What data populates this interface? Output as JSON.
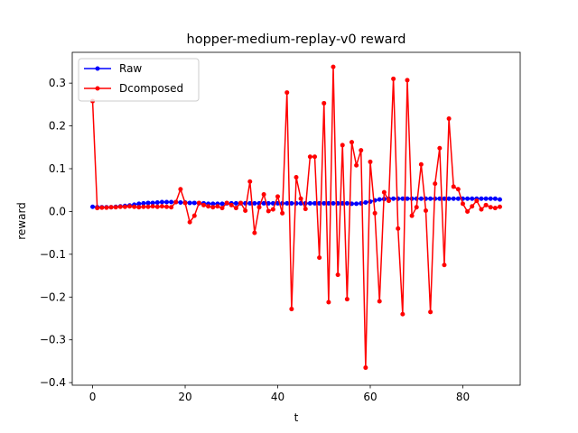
{
  "chart_data": {
    "type": "line",
    "title": "hopper-medium-replay-v0 reward",
    "xlabel": "t",
    "ylabel": "reward",
    "xlim": [
      -4.4,
      92.4
    ],
    "ylim": [
      -0.406,
      0.372
    ],
    "xticks": [
      0,
      20,
      40,
      60,
      80
    ],
    "yticks": [
      -0.4,
      -0.3,
      -0.2,
      -0.1,
      0.0,
      0.1,
      0.2,
      0.3
    ],
    "ytick_labels": [
      "−0.4",
      "−0.3",
      "−0.2",
      "−0.1",
      "0.0",
      "0.1",
      "0.2",
      "0.3"
    ],
    "xtick_labels": [
      "0",
      "20",
      "40",
      "60",
      "80"
    ],
    "grid": false,
    "legend_position": "upper-left",
    "x": [
      0,
      1,
      2,
      3,
      4,
      5,
      6,
      7,
      8,
      9,
      10,
      11,
      12,
      13,
      14,
      15,
      16,
      17,
      18,
      19,
      20,
      21,
      22,
      23,
      24,
      25,
      26,
      27,
      28,
      29,
      30,
      31,
      32,
      33,
      34,
      35,
      36,
      37,
      38,
      39,
      40,
      41,
      42,
      43,
      44,
      45,
      46,
      47,
      48,
      49,
      50,
      51,
      52,
      53,
      54,
      55,
      56,
      57,
      58,
      59,
      60,
      61,
      62,
      63,
      64,
      65,
      66,
      67,
      68,
      69,
      70,
      71,
      72,
      73,
      74,
      75,
      76,
      77,
      78,
      79,
      80,
      81,
      82,
      83,
      84,
      85,
      86,
      87,
      88
    ],
    "series": [
      {
        "name": "Raw",
        "color": "#0000ff",
        "values": [
          0.011,
          0.01,
          0.01,
          0.01,
          0.01,
          0.011,
          0.012,
          0.013,
          0.014,
          0.016,
          0.018,
          0.019,
          0.02,
          0.02,
          0.021,
          0.022,
          0.022,
          0.022,
          0.022,
          0.021,
          0.021,
          0.02,
          0.02,
          0.019,
          0.019,
          0.018,
          0.018,
          0.018,
          0.018,
          0.019,
          0.019,
          0.019,
          0.019,
          0.019,
          0.019,
          0.019,
          0.019,
          0.019,
          0.019,
          0.019,
          0.019,
          0.019,
          0.019,
          0.019,
          0.019,
          0.019,
          0.019,
          0.019,
          0.019,
          0.019,
          0.019,
          0.019,
          0.019,
          0.019,
          0.019,
          0.019,
          0.018,
          0.018,
          0.019,
          0.021,
          0.023,
          0.026,
          0.028,
          0.029,
          0.03,
          0.03,
          0.03,
          0.03,
          0.03,
          0.03,
          0.03,
          0.03,
          0.03,
          0.03,
          0.03,
          0.03,
          0.03,
          0.03,
          0.03,
          0.03,
          0.03,
          0.03,
          0.03,
          0.03,
          0.03,
          0.03,
          0.03,
          0.03,
          0.028
        ]
      },
      {
        "name": "Dcomposed",
        "color": "#ff0000",
        "values": [
          0.258,
          0.008,
          0.009,
          0.009,
          0.01,
          0.01,
          0.011,
          0.011,
          0.012,
          0.011,
          0.01,
          0.011,
          0.011,
          0.012,
          0.011,
          0.012,
          0.011,
          0.01,
          0.022,
          0.052,
          0.02,
          -0.025,
          -0.01,
          0.02,
          0.015,
          0.012,
          0.01,
          0.012,
          0.008,
          0.02,
          0.015,
          0.008,
          0.02,
          0.002,
          0.07,
          -0.05,
          0.01,
          0.04,
          0.001,
          0.005,
          0.035,
          -0.004,
          0.278,
          -0.228,
          0.08,
          0.03,
          0.006,
          0.128,
          0.128,
          -0.108,
          0.253,
          -0.212,
          0.338,
          -0.148,
          0.155,
          -0.205,
          0.162,
          0.108,
          0.143,
          -0.365,
          0.116,
          -0.004,
          -0.21,
          0.045,
          0.025,
          0.31,
          -0.04,
          -0.24,
          0.307,
          -0.01,
          0.01,
          0.11,
          0.002,
          -0.235,
          0.065,
          0.148,
          -0.125,
          0.217,
          0.058,
          0.052,
          0.018,
          0.0,
          0.012,
          0.025,
          0.005,
          0.015,
          0.01,
          0.008,
          0.011
        ]
      }
    ]
  }
}
